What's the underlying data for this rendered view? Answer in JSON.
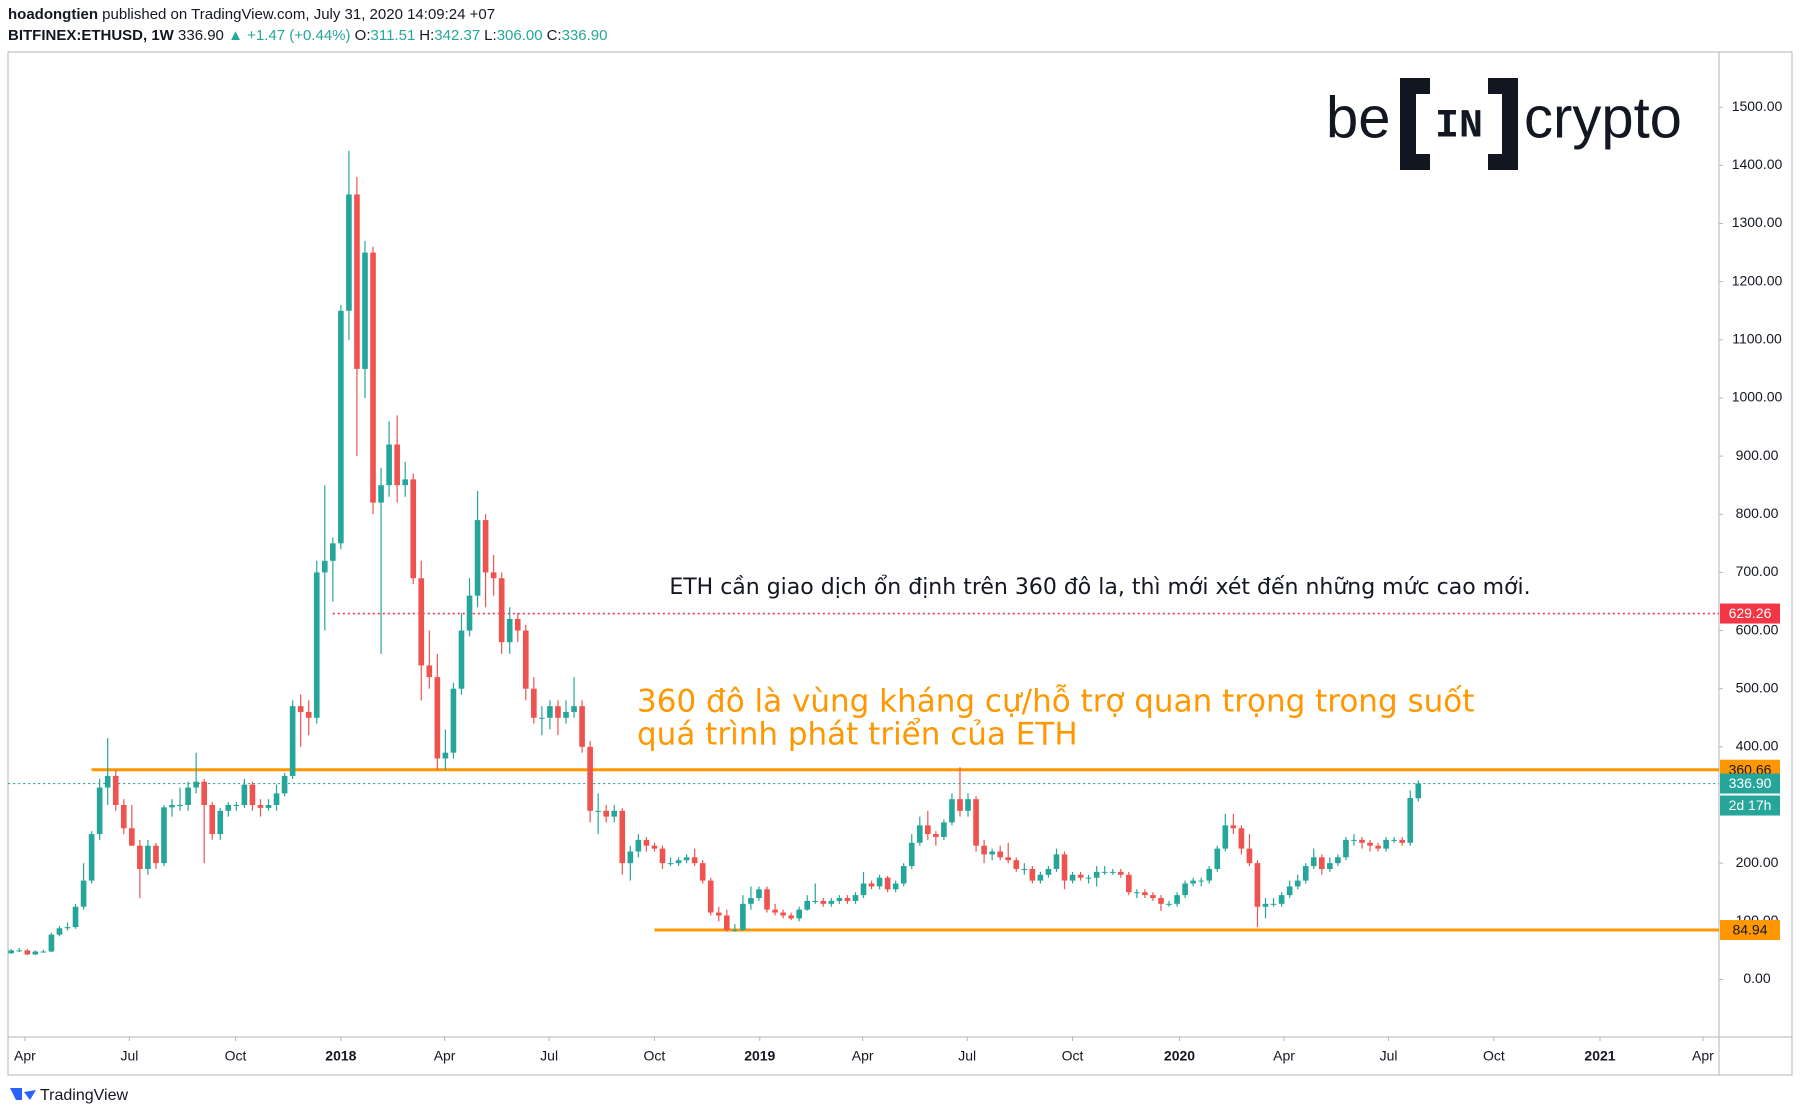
{
  "header": {
    "user": "hoadongtien",
    "published": "published on TradingView.com, July 31, 2020 14:09:24 +07",
    "symbol": "BITFINEX:ETHUSD, 1W",
    "last": "336.90",
    "change": "▲ +1.47 (+0.44%)",
    "ohlc": [
      {
        "key": "O:",
        "value": "311.51"
      },
      {
        "key": "H:",
        "value": "342.37"
      },
      {
        "key": "L:",
        "value": "306.00"
      },
      {
        "key": "C:",
        "value": "336.90"
      }
    ]
  },
  "logo": {
    "left": "be",
    "mid": "IN",
    "right": "crypto"
  },
  "footer": "TradingView",
  "chart_data": {
    "type": "candlestick",
    "up_color": "#26a69a",
    "down_color": "#ef5350",
    "ohlc": [
      [
        45,
        52,
        44,
        50
      ],
      [
        50,
        54,
        47,
        50
      ],
      [
        50,
        52,
        42,
        43
      ],
      [
        43,
        50,
        42,
        48
      ],
      [
        48,
        51,
        46,
        48
      ],
      [
        48,
        80,
        47,
        77
      ],
      [
        77,
        92,
        74,
        88
      ],
      [
        88,
        98,
        84,
        90
      ],
      [
        90,
        130,
        87,
        125
      ],
      [
        125,
        200,
        120,
        170
      ],
      [
        170,
        255,
        165,
        250
      ],
      [
        250,
        345,
        240,
        330
      ],
      [
        330,
        415,
        300,
        350
      ],
      [
        350,
        360,
        290,
        300
      ],
      [
        300,
        310,
        250,
        260
      ],
      [
        260,
        300,
        230,
        230
      ],
      [
        230,
        240,
        140,
        190
      ],
      [
        190,
        240,
        180,
        230
      ],
      [
        230,
        235,
        190,
        200
      ],
      [
        200,
        300,
        195,
        296
      ],
      [
        296,
        310,
        280,
        300
      ],
      [
        300,
        330,
        290,
        300
      ],
      [
        300,
        340,
        290,
        330
      ],
      [
        330,
        390,
        320,
        340
      ],
      [
        340,
        345,
        200,
        300
      ],
      [
        300,
        305,
        240,
        250
      ],
      [
        250,
        295,
        240,
        290
      ],
      [
        290,
        305,
        280,
        300
      ],
      [
        300,
        305,
        290,
        300
      ],
      [
        300,
        345,
        295,
        335
      ],
      [
        335,
        340,
        290,
        300
      ],
      [
        300,
        310,
        280,
        295
      ],
      [
        295,
        310,
        290,
        300
      ],
      [
        300,
        335,
        290,
        320
      ],
      [
        320,
        355,
        315,
        350
      ],
      [
        350,
        480,
        345,
        470
      ],
      [
        470,
        490,
        400,
        460
      ],
      [
        460,
        480,
        420,
        450
      ],
      [
        450,
        720,
        440,
        700
      ],
      [
        700,
        850,
        600,
        720
      ],
      [
        720,
        760,
        650,
        750
      ],
      [
        750,
        1160,
        740,
        1150
      ],
      [
        1150,
        1425,
        1100,
        1350
      ],
      [
        1350,
        1380,
        900,
        1050
      ],
      [
        1050,
        1270,
        1000,
        1250
      ],
      [
        1250,
        1260,
        800,
        820
      ],
      [
        820,
        880,
        560,
        850
      ],
      [
        850,
        960,
        830,
        920
      ],
      [
        920,
        970,
        820,
        850
      ],
      [
        850,
        890,
        830,
        860
      ],
      [
        860,
        870,
        680,
        690
      ],
      [
        690,
        720,
        480,
        540
      ],
      [
        540,
        600,
        500,
        520
      ],
      [
        520,
        560,
        360,
        380
      ],
      [
        380,
        430,
        360,
        390
      ],
      [
        390,
        510,
        380,
        500
      ],
      [
        500,
        630,
        490,
        600
      ],
      [
        600,
        690,
        590,
        660
      ],
      [
        660,
        840,
        640,
        790
      ],
      [
        790,
        800,
        640,
        700
      ],
      [
        700,
        730,
        660,
        690
      ],
      [
        690,
        700,
        560,
        580
      ],
      [
        580,
        640,
        560,
        620
      ],
      [
        620,
        630,
        580,
        600
      ],
      [
        600,
        610,
        480,
        500
      ],
      [
        500,
        520,
        440,
        450
      ],
      [
        450,
        470,
        420,
        450
      ],
      [
        450,
        480,
        430,
        470
      ],
      [
        470,
        480,
        420,
        450
      ],
      [
        450,
        480,
        440,
        460
      ],
      [
        460,
        520,
        450,
        470
      ],
      [
        470,
        480,
        390,
        400
      ],
      [
        400,
        410,
        270,
        290
      ],
      [
        290,
        320,
        250,
        290
      ],
      [
        290,
        300,
        270,
        280
      ],
      [
        280,
        300,
        270,
        290
      ],
      [
        290,
        295,
        180,
        200
      ],
      [
        200,
        230,
        170,
        220
      ],
      [
        220,
        250,
        210,
        240
      ],
      [
        240,
        245,
        220,
        230
      ],
      [
        230,
        235,
        220,
        225
      ],
      [
        225,
        230,
        190,
        200
      ],
      [
        200,
        210,
        195,
        200
      ],
      [
        200,
        210,
        195,
        205
      ],
      [
        205,
        215,
        200,
        210
      ],
      [
        210,
        225,
        195,
        200
      ],
      [
        200,
        205,
        165,
        170
      ],
      [
        170,
        175,
        110,
        115
      ],
      [
        115,
        125,
        100,
        110
      ],
      [
        110,
        120,
        82,
        85
      ],
      [
        85,
        95,
        82,
        85
      ],
      [
        85,
        145,
        84,
        130
      ],
      [
        130,
        160,
        120,
        140
      ],
      [
        140,
        160,
        135,
        155
      ],
      [
        155,
        160,
        115,
        120
      ],
      [
        120,
        130,
        110,
        115
      ],
      [
        115,
        120,
        105,
        110
      ],
      [
        110,
        115,
        102,
        105
      ],
      [
        105,
        125,
        100,
        120
      ],
      [
        120,
        145,
        118,
        135
      ],
      [
        135,
        165,
        130,
        135
      ],
      [
        135,
        140,
        125,
        130
      ],
      [
        130,
        140,
        125,
        135
      ],
      [
        135,
        145,
        130,
        140
      ],
      [
        140,
        145,
        130,
        135
      ],
      [
        135,
        150,
        130,
        145
      ],
      [
        145,
        185,
        140,
        165
      ],
      [
        165,
        170,
        155,
        160
      ],
      [
        160,
        180,
        155,
        175
      ],
      [
        175,
        178,
        150,
        155
      ],
      [
        155,
        170,
        150,
        165
      ],
      [
        165,
        200,
        160,
        195
      ],
      [
        195,
        250,
        190,
        235
      ],
      [
        235,
        280,
        230,
        265
      ],
      [
        265,
        290,
        240,
        250
      ],
      [
        250,
        255,
        230,
        245
      ],
      [
        245,
        275,
        240,
        270
      ],
      [
        270,
        320,
        265,
        310
      ],
      [
        310,
        365,
        280,
        290
      ],
      [
        290,
        320,
        280,
        310
      ],
      [
        310,
        315,
        220,
        230
      ],
      [
        230,
        240,
        200,
        215
      ],
      [
        215,
        225,
        205,
        220
      ],
      [
        220,
        230,
        205,
        210
      ],
      [
        210,
        235,
        200,
        205
      ],
      [
        205,
        210,
        185,
        190
      ],
      [
        190,
        200,
        180,
        190
      ],
      [
        190,
        195,
        165,
        170
      ],
      [
        170,
        185,
        165,
        180
      ],
      [
        180,
        195,
        175,
        190
      ],
      [
        190,
        225,
        185,
        215
      ],
      [
        215,
        220,
        155,
        170
      ],
      [
        170,
        185,
        165,
        180
      ],
      [
        180,
        185,
        170,
        175
      ],
      [
        175,
        180,
        165,
        175
      ],
      [
        175,
        195,
        160,
        185
      ],
      [
        185,
        195,
        180,
        185
      ],
      [
        185,
        190,
        180,
        185
      ],
      [
        185,
        190,
        175,
        180
      ],
      [
        180,
        185,
        145,
        150
      ],
      [
        150,
        155,
        140,
        150
      ],
      [
        150,
        155,
        140,
        145
      ],
      [
        145,
        150,
        135,
        140
      ],
      [
        140,
        145,
        118,
        130
      ],
      [
        130,
        135,
        125,
        130
      ],
      [
        130,
        150,
        125,
        145
      ],
      [
        145,
        170,
        140,
        165
      ],
      [
        165,
        175,
        160,
        170
      ],
      [
        170,
        175,
        160,
        170
      ],
      [
        170,
        195,
        165,
        190
      ],
      [
        190,
        230,
        185,
        225
      ],
      [
        225,
        285,
        220,
        265
      ],
      [
        265,
        285,
        250,
        260
      ],
      [
        260,
        265,
        215,
        225
      ],
      [
        225,
        250,
        195,
        200
      ],
      [
        200,
        205,
        90,
        125
      ],
      [
        125,
        140,
        105,
        130
      ],
      [
        130,
        140,
        125,
        130
      ],
      [
        130,
        150,
        125,
        145
      ],
      [
        145,
        170,
        140,
        160
      ],
      [
        160,
        180,
        155,
        170
      ],
      [
        170,
        200,
        165,
        195
      ],
      [
        195,
        225,
        190,
        210
      ],
      [
        210,
        215,
        180,
        190
      ],
      [
        190,
        210,
        185,
        200
      ],
      [
        200,
        215,
        195,
        210
      ],
      [
        210,
        245,
        205,
        240
      ],
      [
        240,
        250,
        230,
        240
      ],
      [
        240,
        245,
        225,
        235
      ],
      [
        235,
        240,
        220,
        230
      ],
      [
        230,
        235,
        220,
        225
      ],
      [
        225,
        245,
        220,
        240
      ],
      [
        240,
        245,
        235,
        240
      ],
      [
        240,
        245,
        230,
        235
      ],
      [
        235,
        325,
        230,
        312
      ],
      [
        311.51,
        342.37,
        306.0,
        336.9
      ]
    ],
    "xlim": [
      -0.4,
      212.4
    ],
    "xticks": [
      {
        "value": 1.7,
        "label": "Apr"
      },
      {
        "value": 14.7,
        "label": "Jul"
      },
      {
        "value": 27.9,
        "label": "Oct"
      },
      {
        "value": 41,
        "label": "2018"
      },
      {
        "value": 53.9,
        "label": "Apr"
      },
      {
        "value": 66.9,
        "label": "Jul"
      },
      {
        "value": 80,
        "label": "Oct"
      },
      {
        "value": 93.1,
        "label": "2019"
      },
      {
        "value": 105.9,
        "label": "Apr"
      },
      {
        "value": 118.9,
        "label": "Jul"
      },
      {
        "value": 132,
        "label": "Oct"
      },
      {
        "value": 145.3,
        "label": "2020"
      },
      {
        "value": 158.3,
        "label": "Apr"
      },
      {
        "value": 171.3,
        "label": "Jul"
      },
      {
        "value": 184.4,
        "label": "Oct"
      },
      {
        "value": 197.6,
        "label": "2021"
      },
      {
        "value": 210.4,
        "label": "Apr"
      }
    ],
    "ylim": [
      -99,
      1595
    ],
    "yticks": [
      {
        "value": 0,
        "label": "0.00"
      },
      {
        "value": 100,
        "label": "100.00"
      },
      {
        "value": 200,
        "label": "200.00"
      },
      {
        "value": 300,
        "label": "300.00"
      },
      {
        "value": 400,
        "label": "400.00"
      },
      {
        "value": 500,
        "label": "500.00"
      },
      {
        "value": 600,
        "label": "600.00"
      },
      {
        "value": 700,
        "label": "700.00"
      },
      {
        "value": 800,
        "label": "800.00"
      },
      {
        "value": 900,
        "label": "900.00"
      },
      {
        "value": 1000,
        "label": "1000.00"
      },
      {
        "value": 1100,
        "label": "1100.00"
      },
      {
        "value": 1200,
        "label": "1200.00"
      },
      {
        "value": 1300,
        "label": "1300.00"
      },
      {
        "value": 1400,
        "label": "1400.00"
      },
      {
        "value": 1500,
        "label": "1500.00"
      }
    ],
    "price_lines": [
      {
        "value": 629.26,
        "label": "629.26",
        "color": "#f23645",
        "text_color": "#ffffff",
        "style": "dotted"
      },
      {
        "value": 360.66,
        "label": "360.66",
        "color": "#ff9800",
        "text_color": "#131722",
        "style": "solid"
      },
      {
        "value": 336.9,
        "label": "336.90",
        "color": "#26a69a",
        "text_color": "#ffffff",
        "style": "dotted"
      },
      {
        "value": 84.94,
        "label": "84.94",
        "color": "#ff9800",
        "text_color": "#131722",
        "style": "solid"
      }
    ],
    "countdown": "2d 17h",
    "annotations": [
      {
        "text": "ETH cần giao dịch ổn định trên 360 đô la, thì mới xét đến những mức cao mới.",
        "color": "#131722"
      },
      {
        "text": "360 đô là vùng kháng cự/hỗ trợ quan trọng trong suốt",
        "color": "#ff9800"
      },
      {
        "text": "quá trình phát triển của ETH",
        "color": "#ff9800"
      }
    ]
  }
}
